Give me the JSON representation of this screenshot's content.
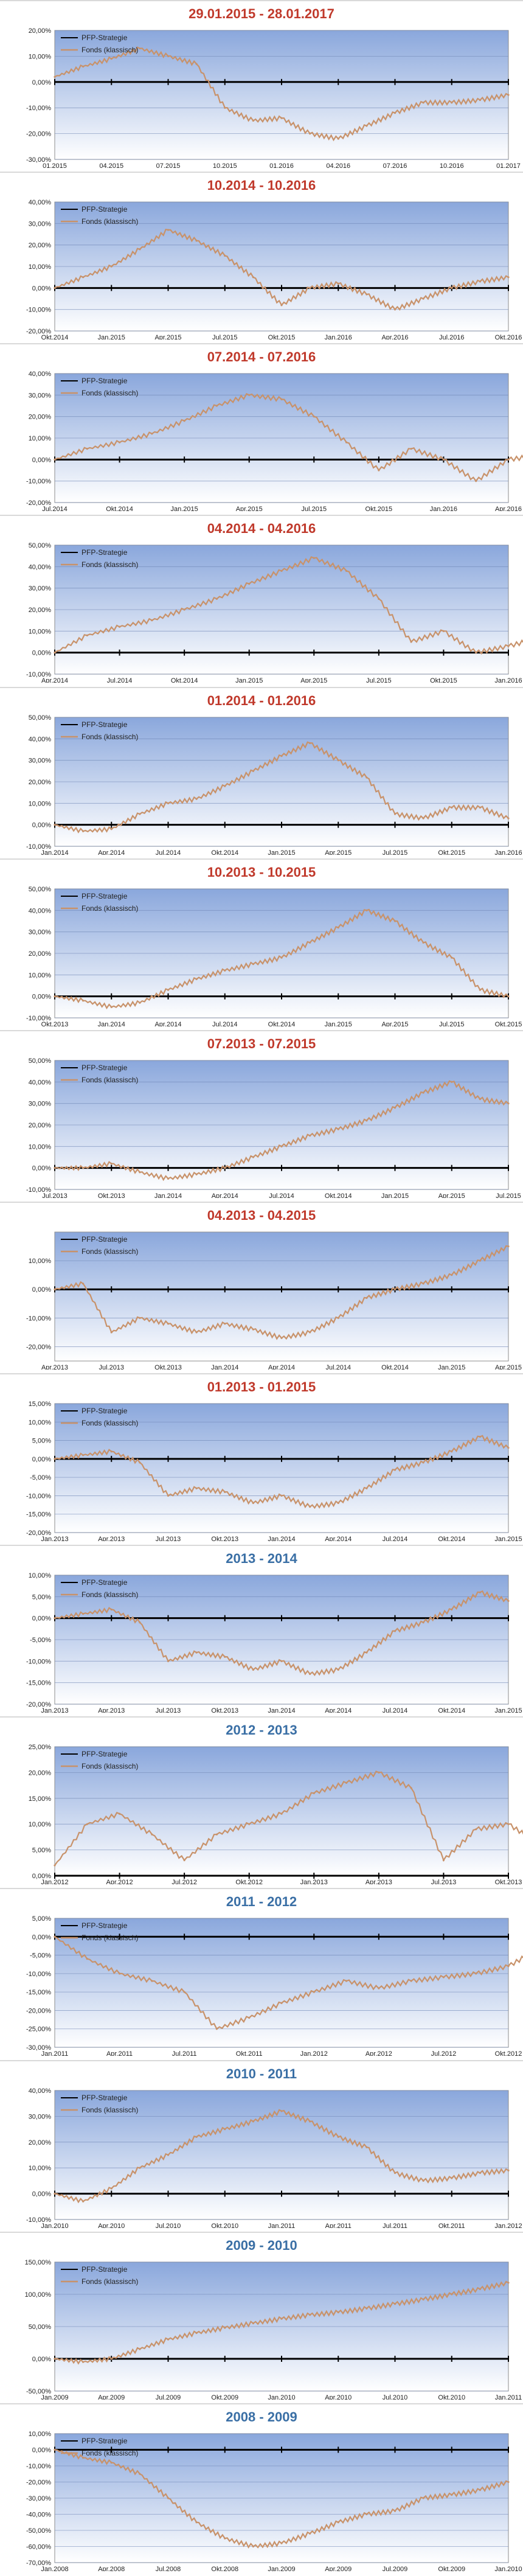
{
  "legend": {
    "strategy": "PFP-Strategie",
    "fund": "Fonds (klassisch)"
  },
  "colors": {
    "fund": "#c8926a",
    "strategy": "#000000",
    "title_red": "#c0392b",
    "title_blue": "#3a6fa5"
  },
  "chart_data": [
    {
      "type": "line",
      "title": "29.01.2015 - 28.01.2017",
      "title_color": "red",
      "yticks": [
        "20,00%",
        "10,00%",
        "0,00%",
        "-10,00%",
        "-20,00%",
        "-30,00%"
      ],
      "ylim": [
        -30,
        20
      ],
      "xticks": [
        "01.2015",
        "04.2015",
        "07.2015",
        "10.2015",
        "01.2016",
        "04.2016",
        "07.2016",
        "10.2016",
        "01.2017"
      ],
      "series": [
        {
          "name": "Fonds (klassisch)",
          "x": [
            0,
            0.5,
            1,
            1.5,
            2,
            2.5,
            3,
            3.5,
            4,
            4.5,
            5,
            5.5,
            6,
            6.5,
            7,
            7.5,
            8
          ],
          "y": [
            2,
            6,
            9,
            13,
            10,
            7,
            -10,
            -15,
            -14,
            -20,
            -22,
            -17,
            -12,
            -8,
            -8,
            -7,
            -5
          ]
        }
      ]
    },
    {
      "type": "line",
      "title": "10.2014 - 10.2016",
      "title_color": "red",
      "yticks": [
        "40,00%",
        "30,00%",
        "20,00%",
        "10,00%",
        "0,00%",
        "-10,00%",
        "-20,00%"
      ],
      "ylim": [
        -20,
        40
      ],
      "xticks": [
        "Okt.2014",
        "Jan.2015",
        "Apr.2015",
        "Jul.2015",
        "Okt.2015",
        "Jan.2016",
        "Apr.2016",
        "Jul.2016",
        "Okt.2016"
      ],
      "series": [
        {
          "name": "Fonds (klassisch)",
          "x": [
            0,
            0.5,
            1,
            1.5,
            2,
            2.5,
            3,
            3.5,
            4,
            4.5,
            5,
            5.5,
            6,
            6.5,
            7,
            7.5,
            8
          ],
          "y": [
            0,
            5,
            10,
            18,
            27,
            22,
            15,
            5,
            -8,
            0,
            2,
            -3,
            -10,
            -5,
            0,
            3,
            5
          ]
        }
      ]
    },
    {
      "type": "line",
      "title": "07.2014 - 07.2016",
      "title_color": "red",
      "yticks": [
        "40,00%",
        "30,00%",
        "20,00%",
        "10,00%",
        "0,00%",
        "-10,00%",
        "-20,00%"
      ],
      "ylim": [
        -20,
        40
      ],
      "xticks": [
        "Jul.2014",
        "Okt.2014",
        "Jan.2015",
        "Apr.2015",
        "Jul.2015",
        "Okt.2015",
        "Jan.2016",
        "Apr.2016"
      ],
      "series": [
        {
          "name": "Fonds (klassisch)",
          "x": [
            0,
            0.5,
            1,
            1.5,
            2,
            2.5,
            3,
            3.5,
            4,
            4.5,
            5,
            5.5,
            6,
            6.5,
            7,
            7.5
          ],
          "y": [
            0,
            5,
            8,
            12,
            18,
            25,
            30,
            28,
            20,
            8,
            -5,
            5,
            0,
            -10,
            0,
            2
          ]
        }
      ]
    },
    {
      "type": "line",
      "title": "04.2014 - 04.2016",
      "title_color": "red",
      "yticks": [
        "50,00%",
        "40,00%",
        "30,00%",
        "20,00%",
        "10,00%",
        "0,00%",
        "-10,00%"
      ],
      "ylim": [
        -10,
        50
      ],
      "xticks": [
        "Apr.2014",
        "Jul.2014",
        "Okt.2014",
        "Jan.2015",
        "Apr.2015",
        "Jul.2015",
        "Okt.2015",
        "Jan.2016"
      ],
      "series": [
        {
          "name": "Fonds (klassisch)",
          "x": [
            0,
            0.5,
            1,
            1.5,
            2,
            2.5,
            3,
            3.5,
            4,
            4.5,
            5,
            5.5,
            6,
            6.5,
            7,
            7.5
          ],
          "y": [
            0,
            8,
            12,
            15,
            20,
            25,
            32,
            38,
            44,
            38,
            25,
            5,
            10,
            0,
            3,
            7
          ]
        }
      ]
    },
    {
      "type": "line",
      "title": "01.2014 - 01.2016",
      "title_color": "red",
      "yticks": [
        "50,00%",
        "40,00%",
        "30,00%",
        "20,00%",
        "10,00%",
        "0,00%",
        "-10,00%"
      ],
      "ylim": [
        -10,
        50
      ],
      "xticks": [
        "Jan.2014",
        "Apr.2014",
        "Jul.2014",
        "Okt.2014",
        "Jan.2015",
        "Apr.2015",
        "Jul.2015",
        "Okt.2015",
        "Jan.2016"
      ],
      "series": [
        {
          "name": "Fonds (klassisch)",
          "x": [
            0,
            0.5,
            1,
            1.5,
            2,
            2.5,
            3,
            3.5,
            4,
            4.5,
            5,
            5.5,
            6,
            6.5,
            7,
            7.5,
            8
          ],
          "y": [
            0,
            -3,
            -2,
            5,
            10,
            12,
            18,
            25,
            32,
            38,
            30,
            22,
            5,
            3,
            8,
            8,
            3
          ]
        }
      ]
    },
    {
      "type": "line",
      "title": "10.2013 - 10.2015",
      "title_color": "red",
      "yticks": [
        "50,00%",
        "40,00%",
        "30,00%",
        "20,00%",
        "10,00%",
        "0,00%",
        "-10,00%"
      ],
      "ylim": [
        -10,
        50
      ],
      "xticks": [
        "Okt.2013",
        "Jan.2014",
        "Apr.2014",
        "Jul.2014",
        "Okt.2014",
        "Jan.2015",
        "Apr.2015",
        "Jul.2015",
        "Okt.2015"
      ],
      "series": [
        {
          "name": "Fonds (klassisch)",
          "x": [
            0,
            0.5,
            1,
            1.5,
            2,
            2.5,
            3,
            3.5,
            4,
            4.5,
            5,
            5.5,
            6,
            6.5,
            7,
            7.5,
            8
          ],
          "y": [
            0,
            -2,
            -5,
            -3,
            3,
            8,
            12,
            15,
            18,
            25,
            32,
            40,
            35,
            25,
            18,
            3,
            0
          ]
        }
      ]
    },
    {
      "type": "line",
      "title": "07.2013 - 07.2015",
      "title_color": "red",
      "yticks": [
        "50,00%",
        "40,00%",
        "30,00%",
        "20,00%",
        "10,00%",
        "0,00%",
        "-10,00%"
      ],
      "ylim": [
        -10,
        50
      ],
      "xticks": [
        "Jul.2013",
        "Okt.2013",
        "Jan.2014",
        "Apr.2014",
        "Jul.2014",
        "Okt.2014",
        "Jan.2015",
        "Apr.2015",
        "Jul.2015"
      ],
      "series": [
        {
          "name": "Fonds (klassisch)",
          "x": [
            0,
            0.5,
            1,
            1.5,
            2,
            2.5,
            3,
            3.5,
            4,
            4.5,
            5,
            5.5,
            6,
            6.5,
            7,
            7.5,
            8
          ],
          "y": [
            0,
            0,
            2,
            -2,
            -5,
            -3,
            0,
            5,
            10,
            15,
            18,
            22,
            28,
            35,
            40,
            32,
            30
          ]
        }
      ]
    },
    {
      "type": "line",
      "title": "04.2013 - 04.2015",
      "title_color": "red",
      "yticks": [
        "10,00%",
        "0,00%",
        "-10,00%",
        "-20,00%"
      ],
      "ylim": [
        -25,
        20
      ],
      "xticks": [
        "Apr.2013",
        "Jul.2013",
        "Okt.2013",
        "Jan.2014",
        "Apr.2014",
        "Jul.2014",
        "Okt.2014",
        "Jan.2015",
        "Apr.2015"
      ],
      "series": [
        {
          "name": "Fonds (klassisch)",
          "x": [
            0,
            0.5,
            1,
            1.5,
            2,
            2.5,
            3,
            3.5,
            4,
            4.5,
            5,
            5.5,
            6,
            6.5,
            7,
            7.5,
            8
          ],
          "y": [
            0,
            2,
            -15,
            -10,
            -12,
            -15,
            -12,
            -14,
            -17,
            -15,
            -10,
            -3,
            0,
            2,
            5,
            10,
            15
          ]
        }
      ]
    },
    {
      "type": "line",
      "title": "01.2013 - 01.2015",
      "title_color": "red",
      "yticks": [
        "15,00%",
        "10,00%",
        "5,00%",
        "0,00%",
        "-5,00%",
        "-10,00%",
        "-15,00%",
        "-20,00%"
      ],
      "ylim": [
        -20,
        15
      ],
      "xticks": [
        "Jan.2013",
        "Apr.2013",
        "Jul.2013",
        "Okt.2013",
        "Jan.2014",
        "Apr.2014",
        "Jul.2014",
        "Okt.2014",
        "Jan.2015"
      ],
      "series": [
        {
          "name": "Fonds (klassisch)",
          "x": [
            0,
            0.5,
            1,
            1.5,
            2,
            2.5,
            3,
            3.5,
            4,
            4.5,
            5,
            5.5,
            6,
            6.5,
            7,
            7.5,
            8
          ],
          "y": [
            0,
            1,
            2,
            -1,
            -10,
            -8,
            -9,
            -12,
            -10,
            -13,
            -12,
            -8,
            -3,
            -1,
            2,
            6,
            3
          ]
        }
      ]
    },
    {
      "type": "line",
      "title": "2013 - 2014",
      "title_color": "blue",
      "yticks": [
        "10,00%",
        "5,00%",
        "0,00%",
        "-5,00%",
        "-10,00%",
        "-15,00%",
        "-20,00%"
      ],
      "ylim": [
        -20,
        10
      ],
      "xticks": [
        "Jan.2013",
        "Apr.2013",
        "Jul.2013",
        "Okt.2013",
        "Jan.2014",
        "Apr.2014",
        "Jul.2014",
        "Okt.2014",
        "Jan.2015"
      ],
      "series": [
        {
          "name": "Fonds (klassisch)",
          "x": [
            0,
            0.5,
            1,
            1.5,
            2,
            2.5,
            3,
            3.5,
            4,
            4.5,
            5,
            5.5,
            6,
            6.5,
            7,
            7.5,
            8
          ],
          "y": [
            0,
            1,
            2,
            -1,
            -10,
            -8,
            -9,
            -12,
            -10,
            -13,
            -12,
            -8,
            -3,
            -1,
            2,
            6,
            4
          ]
        }
      ]
    },
    {
      "type": "line",
      "title": "2012 - 2013",
      "title_color": "blue",
      "yticks": [
        "25,00%",
        "20,00%",
        "15,00%",
        "10,00%",
        "5,00%",
        "0,00%"
      ],
      "ylim": [
        0,
        25
      ],
      "xticks": [
        "Jan.2012",
        "Apr.2012",
        "Jul.2012",
        "Okt.2012",
        "Jan.2013",
        "Apr.2013",
        "Jul.2013",
        "Okt.2013"
      ],
      "series": [
        {
          "name": "Fonds (klassisch)",
          "x": [
            0,
            0.5,
            1,
            1.5,
            2,
            2.5,
            3,
            3.5,
            4,
            4.5,
            5,
            5.5,
            6,
            6.5,
            7,
            7.5
          ],
          "y": [
            2,
            10,
            12,
            8,
            3,
            8,
            10,
            12,
            16,
            18,
            20,
            17,
            3,
            9,
            10,
            6
          ]
        }
      ]
    },
    {
      "type": "line",
      "title": "2011 - 2012",
      "title_color": "blue",
      "yticks": [
        "5,00%",
        "0,00%",
        "-5,00%",
        "-10,00%",
        "-15,00%",
        "-20,00%",
        "-25,00%",
        "-30,00%"
      ],
      "ylim": [
        -30,
        5
      ],
      "xticks": [
        "Jan.2011",
        "Apr.2011",
        "Jul.2011",
        "Okt.2011",
        "Jan.2012",
        "Apr.2012",
        "Jul.2012",
        "Okt.2012"
      ],
      "series": [
        {
          "name": "Fonds (klassisch)",
          "x": [
            0,
            0.5,
            1,
            1.5,
            2,
            2.5,
            3,
            3.5,
            4,
            4.5,
            5,
            5.5,
            6,
            6.5,
            7,
            7.5
          ],
          "y": [
            0,
            -6,
            -10,
            -12,
            -15,
            -25,
            -22,
            -18,
            -15,
            -12,
            -14,
            -12,
            -11,
            -10,
            -8,
            -3
          ]
        }
      ]
    },
    {
      "type": "line",
      "title": "2010 - 2011",
      "title_color": "blue",
      "yticks": [
        "40,00%",
        "30,00%",
        "20,00%",
        "10,00%",
        "0,00%",
        "-10,00%"
      ],
      "ylim": [
        -10,
        40
      ],
      "xticks": [
        "Jan.2010",
        "Apr.2010",
        "Jul.2010",
        "Okt.2010",
        "Jan.2011",
        "Apr.2011",
        "Jul.2011",
        "Okt.2011",
        "Jan.2012"
      ],
      "series": [
        {
          "name": "Fonds (klassisch)",
          "x": [
            0,
            0.5,
            1,
            1.5,
            2,
            2.5,
            3,
            3.5,
            4,
            4.5,
            5,
            5.5,
            6,
            6.5,
            7,
            7.5,
            8
          ],
          "y": [
            0,
            -3,
            2,
            10,
            15,
            22,
            25,
            28,
            32,
            28,
            22,
            18,
            8,
            5,
            6,
            8,
            9
          ]
        }
      ]
    },
    {
      "type": "line",
      "title": "2009 - 2010",
      "title_color": "blue",
      "yticks": [
        "150,00%",
        "100,00%",
        "50,00%",
        "0,00%",
        "-50,00%"
      ],
      "ylim": [
        -50,
        150
      ],
      "xticks": [
        "Jan.2009",
        "Apr.2009",
        "Jul.2009",
        "Okt.2009",
        "Jan.2010",
        "Apr.2010",
        "Jul.2010",
        "Okt.2010",
        "Jan.2011"
      ],
      "series": [
        {
          "name": "Fonds (klassisch)",
          "x": [
            0,
            0.5,
            1,
            1.5,
            2,
            2.5,
            3,
            3.5,
            4,
            4.5,
            5,
            5.5,
            6,
            6.5,
            7,
            7.5,
            8
          ],
          "y": [
            0,
            -5,
            0,
            15,
            30,
            40,
            48,
            55,
            62,
            68,
            72,
            78,
            85,
            92,
            100,
            108,
            118
          ]
        }
      ]
    },
    {
      "type": "line",
      "title": "2008 - 2009",
      "title_color": "blue",
      "yticks": [
        "10,00%",
        "0,00%",
        "-10,00%",
        "-20,00%",
        "-30,00%",
        "-40,00%",
        "-50,00%",
        "-60,00%",
        "-70,00%"
      ],
      "ylim": [
        -70,
        10
      ],
      "xticks": [
        "Jan.2008",
        "Apr.2008",
        "Jul.2008",
        "Okt.2008",
        "Jan.2009",
        "Apr.2009",
        "Jul.2009",
        "Okt.2009",
        "Jan.2010"
      ],
      "series": [
        {
          "name": "Fonds (klassisch)",
          "x": [
            0,
            0.5,
            1,
            1.5,
            2,
            2.5,
            3,
            3.5,
            4,
            4.5,
            5,
            5.5,
            6,
            6.5,
            7,
            7.5,
            8
          ],
          "y": [
            0,
            -5,
            -8,
            -15,
            -30,
            -45,
            -55,
            -60,
            -58,
            -52,
            -45,
            -40,
            -38,
            -30,
            -28,
            -25,
            -20
          ]
        }
      ]
    }
  ]
}
